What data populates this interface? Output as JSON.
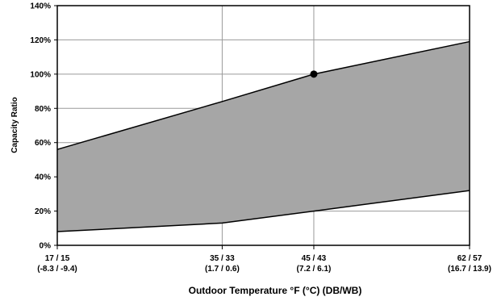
{
  "chart_data": {
    "type": "area",
    "title": "",
    "xlabel": "Outdoor Temperature °F (°C) (DB/WB)",
    "ylabel": "Capacity Ratio",
    "x": [
      17,
      35,
      45,
      62
    ],
    "x_tick_labels": [
      {
        "x": 17,
        "line1": "17 / 15",
        "line2": "(-8.3 / -9.4)"
      },
      {
        "x": 35,
        "line1": "35 / 33",
        "line2": "(1.7 / 0.6)"
      },
      {
        "x": 45,
        "line1": "45 / 43",
        "line2": "(7.2 / 6.1)"
      },
      {
        "x": 62,
        "line1": "62 / 57",
        "line2": "(16.7 / 13.9)"
      }
    ],
    "xlim": [
      17,
      62
    ],
    "ylim": [
      0,
      140
    ],
    "y_ticks": [
      0,
      20,
      40,
      60,
      80,
      100,
      120,
      140
    ],
    "y_tick_format": "percent",
    "grid": true,
    "legend": "none",
    "series": [
      {
        "role": "upper",
        "values": [
          56,
          84,
          100,
          119
        ]
      },
      {
        "role": "lower",
        "values": [
          8,
          13,
          20,
          32
        ]
      }
    ],
    "fill_color": "#a6a6a6",
    "line_color": "#000000",
    "marker": {
      "x": 45,
      "y": 100
    }
  }
}
